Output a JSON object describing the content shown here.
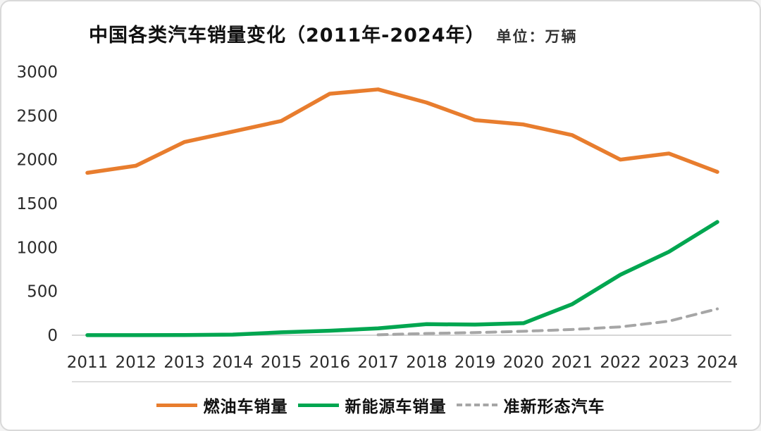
{
  "chart_data": {
    "type": "line",
    "title": "中国各类汽车销量变化（2011年-2024年）",
    "subtitle": "单位：万辆",
    "categories": [
      "2011",
      "2012",
      "2013",
      "2014",
      "2015",
      "2016",
      "2017",
      "2018",
      "2019",
      "2020",
      "2021",
      "2022",
      "2023",
      "2024"
    ],
    "series": [
      {
        "name": "燃油车销量",
        "color": "#E87D2E",
        "style": "solid",
        "values": [
          1850,
          1930,
          2200,
          2320,
          2440,
          2750,
          2800,
          2650,
          2450,
          2400,
          2280,
          2000,
          2070,
          1860
        ]
      },
      {
        "name": "新能源车销量",
        "color": "#00A650",
        "style": "solid",
        "values": [
          1,
          1,
          2,
          7,
          33,
          51,
          78,
          126,
          121,
          137,
          352,
          689,
          950,
          1290
        ]
      },
      {
        "name": "准新形态汽车",
        "color": "#A6A6A6",
        "style": "dashed",
        "values": [
          null,
          null,
          null,
          null,
          null,
          null,
          5,
          20,
          30,
          45,
          65,
          95,
          160,
          300
        ]
      }
    ],
    "ylim": [
      0,
      3000
    ],
    "yticks": [
      0,
      500,
      1000,
      1500,
      2000,
      2500,
      3000
    ],
    "grid": false,
    "legend_position": "bottom",
    "axis_color": "#C9C9C9",
    "text_color": "#2b2b2b"
  }
}
